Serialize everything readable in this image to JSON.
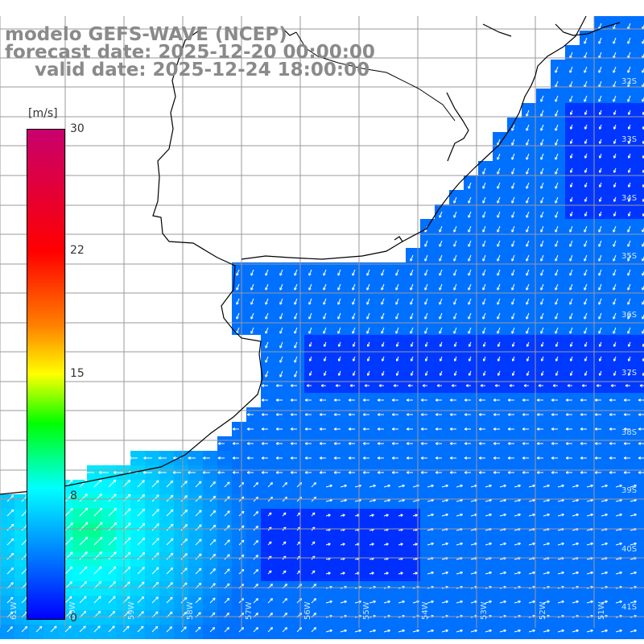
{
  "titles": {
    "model": "modelo GEFS-WAVE (NCEP)",
    "forecast": "forecast date: 2025-12-20 00:00:00",
    "valid": "valid date: 2025-12-24 18:00:00"
  },
  "colorbar": {
    "unit": "[m/s]",
    "ticks": [
      "30",
      "22",
      "15",
      "8",
      "0"
    ],
    "tick_values": [
      30,
      22,
      15,
      8,
      0
    ],
    "colors": [
      "#0000ff",
      "#00ffff",
      "#00ff00",
      "#ffff00",
      "#ff8000",
      "#ff0000",
      "#c8006e"
    ]
  },
  "lat_labels": [
    "32S",
    "33S",
    "34S",
    "35S",
    "36S",
    "37S",
    "38S",
    "39S",
    "40S",
    "41S"
  ],
  "lon_labels": [
    "61W",
    "60W",
    "59W",
    "58W",
    "57W",
    "56W",
    "55W",
    "54W",
    "53W",
    "52W",
    "51W"
  ],
  "colors": {
    "land": "#ffffff",
    "coastline": "#000000",
    "grid": "#9a9a9a",
    "arrow": "#ffffff",
    "title_text": "#8a8a8a"
  }
}
